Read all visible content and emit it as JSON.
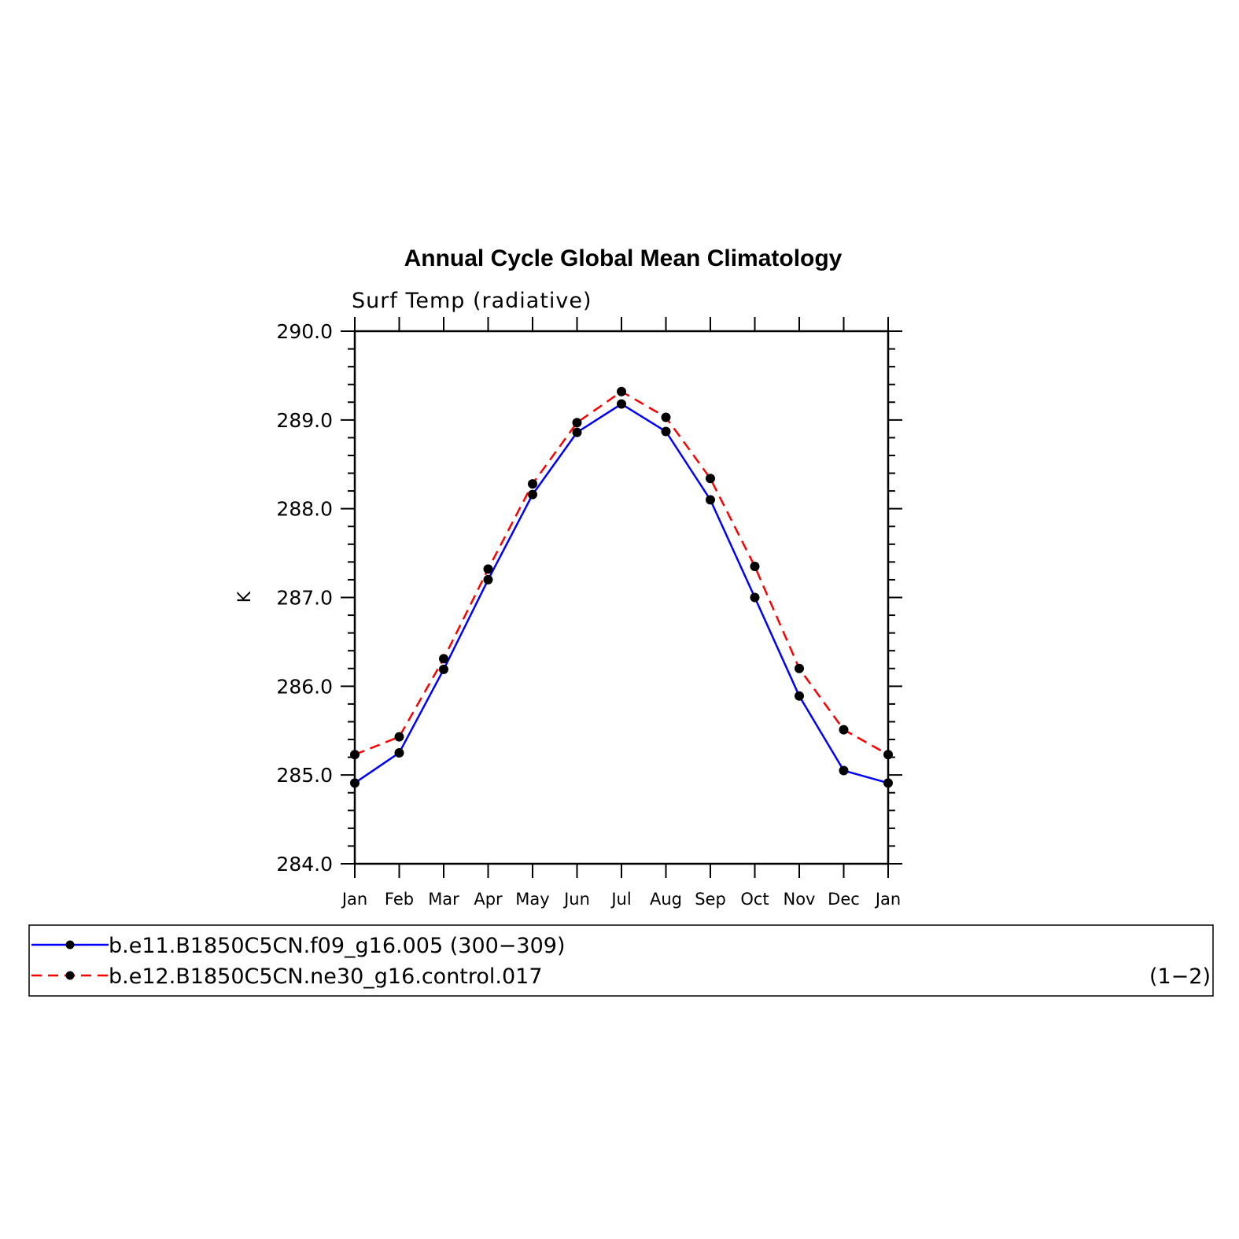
{
  "chart_data": {
    "type": "line",
    "title": "Annual Cycle Global Mean Climatology",
    "subtitle": "Surf Temp (radiative)",
    "ylabel": "K",
    "xlabel": "",
    "categories": [
      "Jan",
      "Feb",
      "Mar",
      "Apr",
      "May",
      "Jun",
      "Jul",
      "Aug",
      "Sep",
      "Oct",
      "Nov",
      "Dec",
      "Jan"
    ],
    "ylim": [
      284.0,
      290.0
    ],
    "yticks": [
      "284.0",
      "285.0",
      "286.0",
      "287.0",
      "288.0",
      "289.0",
      "290.0"
    ],
    "series": [
      {
        "name": "b.e11.B1850C5CN.f09_g16.005 (300−309)",
        "color": "#0000ff",
        "dash": "solid",
        "marker": "filled-circle",
        "values": [
          284.91,
          285.25,
          286.19,
          287.2,
          288.16,
          288.86,
          289.18,
          288.87,
          288.1,
          287.0,
          285.89,
          285.05,
          284.91
        ]
      },
      {
        "name": "b.e12.B1850C5CN.ne30_g16.control.017",
        "color": "#ff0000",
        "dash": "dashed",
        "marker": "filled-circle",
        "values": [
          285.23,
          285.43,
          286.31,
          287.32,
          288.28,
          288.97,
          289.32,
          289.03,
          288.34,
          287.35,
          286.2,
          285.51,
          285.23
        ]
      }
    ],
    "legend_placement": "bottom",
    "legend_note": "(1−2)",
    "grid": false
  }
}
